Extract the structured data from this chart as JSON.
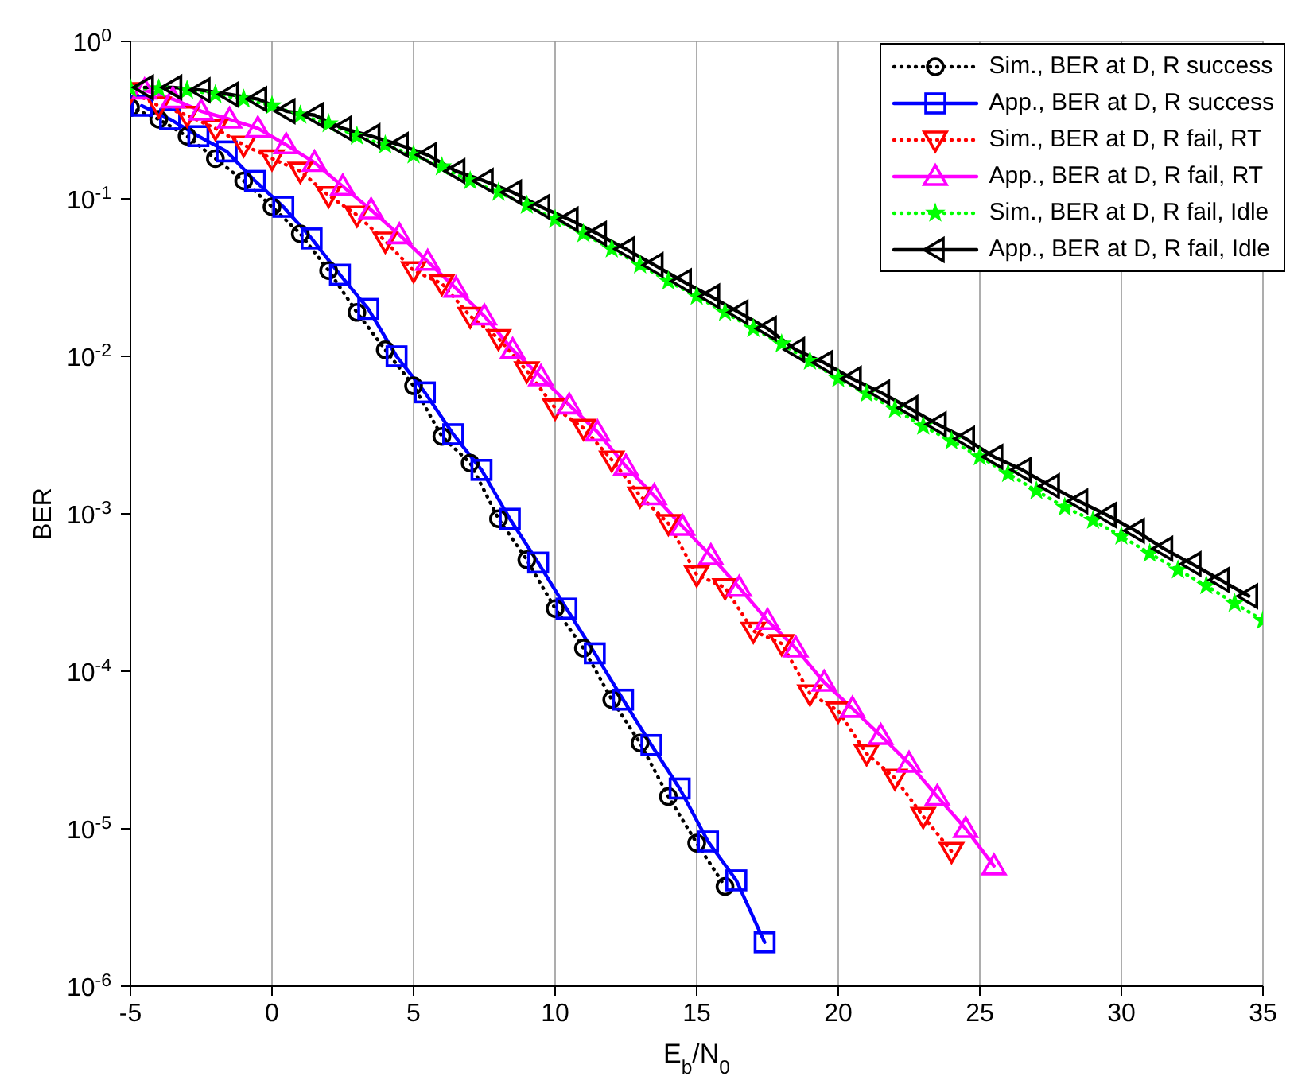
{
  "chart_data": {
    "type": "line",
    "xlabel": "E$_{b}$/N$_{0}$",
    "ylabel": "BER",
    "log": "y",
    "grid": true,
    "legend": "top right",
    "xlim": [
      -5,
      35
    ],
    "xticks": [
      -5,
      0,
      5,
      10,
      15,
      20,
      25,
      30,
      35
    ],
    "ylim": [
      1e-06,
      1
    ],
    "yticks": [
      {
        "value": 1e-06,
        "label": "10$^{-6}$"
      },
      {
        "value": 1e-05,
        "label": "10$^{-5}$"
      },
      {
        "value": 0.0001,
        "label": "10$^{-4}$"
      },
      {
        "value": 0.001,
        "label": "10$^{-3}$"
      },
      {
        "value": 0.01,
        "label": "10$^{-2}$"
      },
      {
        "value": 0.1,
        "label": "10$^{-1}$"
      },
      {
        "value": 1,
        "label": "10$^{0}$"
      }
    ],
    "series": [
      {
        "name": "Sim., BER at D, R success",
        "color": "#000000",
        "marker": "circle",
        "line_style": "dotted",
        "x": [
          -5,
          -4,
          -3,
          -2,
          -1,
          0,
          1,
          2,
          3,
          4,
          5,
          6,
          7,
          8,
          9,
          10,
          11,
          12,
          13,
          14,
          15,
          16
        ],
        "values": [
          0.38,
          0.32,
          0.25,
          0.18,
          0.13,
          0.089,
          0.06,
          0.035,
          0.019,
          0.011,
          0.0065,
          0.0031,
          0.0021,
          0.00093,
          0.00051,
          0.00025,
          0.00014,
          6.6e-05,
          3.5e-05,
          1.6e-05,
          8.1e-06,
          4.3e-06
        ]
      },
      {
        "name": "App., BER at D, R success",
        "color": "#0000ff",
        "marker": "square",
        "line_style": "solid",
        "x": [
          -4.6,
          -3.6,
          -2.6,
          -1.6,
          -0.6,
          0.4,
          1.4,
          2.4,
          3.4,
          4.4,
          5.4,
          6.4,
          7.4,
          8.4,
          9.4,
          10.4,
          11.4,
          12.4,
          13.4,
          14.4,
          15.4,
          16.4,
          17.4
        ],
        "values": [
          0.39,
          0.32,
          0.25,
          0.2,
          0.13,
          0.089,
          0.056,
          0.033,
          0.02,
          0.01,
          0.0059,
          0.0032,
          0.0019,
          0.00093,
          0.00049,
          0.00025,
          0.00013,
          6.6e-05,
          3.4e-05,
          1.8e-05,
          8.3e-06,
          4.7e-06,
          1.9e-06
        ]
      },
      {
        "name": "Sim., BER at D, R fail, RT",
        "color": "#ff0000",
        "marker": "triangle-down",
        "line_style": "dotted",
        "x": [
          -5,
          -4,
          -3,
          -2,
          -1,
          0,
          1,
          2,
          3,
          4,
          5,
          6,
          7,
          8,
          9,
          10,
          11,
          12,
          13,
          14,
          15,
          16,
          17,
          18,
          19,
          20,
          21,
          22,
          23,
          24
        ],
        "values": [
          0.48,
          0.39,
          0.34,
          0.28,
          0.22,
          0.18,
          0.15,
          0.105,
          0.079,
          0.054,
          0.035,
          0.029,
          0.018,
          0.013,
          0.0081,
          0.0047,
          0.0035,
          0.0022,
          0.0013,
          0.00087,
          0.00041,
          0.00034,
          0.00018,
          0.00015,
          7.2e-05,
          5.6e-05,
          3e-05,
          2.1e-05,
          1.2e-05,
          7.2e-06
        ]
      },
      {
        "name": "App., BER at D, R fail, RT",
        "color": "#ff00ff",
        "marker": "triangle",
        "line_style": "solid",
        "x": [
          -4.5,
          -3.5,
          -2.5,
          -1.5,
          -0.5,
          0.5,
          1.5,
          2.5,
          3.5,
          4.5,
          5.5,
          6.5,
          7.5,
          8.5,
          9.5,
          10.5,
          11.5,
          12.5,
          13.5,
          14.5,
          15.5,
          16.5,
          17.5,
          18.5,
          19.5,
          20.5,
          21.5,
          22.5,
          23.5,
          24.5,
          25.5
        ],
        "values": [
          0.49,
          0.43,
          0.36,
          0.32,
          0.28,
          0.22,
          0.17,
          0.12,
          0.085,
          0.059,
          0.04,
          0.027,
          0.018,
          0.011,
          0.0074,
          0.0049,
          0.0033,
          0.002,
          0.0013,
          0.00083,
          0.00054,
          0.00034,
          0.00021,
          0.00014,
          8.5e-05,
          5.8e-05,
          3.9e-05,
          2.6e-05,
          1.6e-05,
          1e-05,
          5.8e-06
        ]
      },
      {
        "name": "Sim., BER at D, R fail, Idle",
        "color": "#00ff00",
        "marker": "star",
        "line_style": "dotted",
        "x": [
          -5,
          -4,
          -3,
          -2,
          -1,
          0,
          1,
          2,
          3,
          4,
          5,
          6,
          7,
          8,
          9,
          10,
          11,
          12,
          13,
          14,
          15,
          16,
          17,
          18,
          19,
          20,
          21,
          22,
          23,
          24,
          25,
          26,
          27,
          28,
          29,
          30,
          31,
          32,
          33,
          34,
          35
        ],
        "values": [
          0.5,
          0.5,
          0.49,
          0.46,
          0.43,
          0.39,
          0.34,
          0.3,
          0.25,
          0.22,
          0.19,
          0.16,
          0.13,
          0.11,
          0.091,
          0.074,
          0.06,
          0.048,
          0.038,
          0.03,
          0.024,
          0.019,
          0.015,
          0.012,
          0.0093,
          0.0072,
          0.0058,
          0.0046,
          0.0036,
          0.0029,
          0.0023,
          0.0018,
          0.0014,
          0.0011,
          0.00091,
          0.00072,
          0.00056,
          0.00044,
          0.00035,
          0.00027,
          0.00021
        ]
      },
      {
        "name": "App., BER at D, R fail, Idle",
        "color": "#000000",
        "marker": "triangle-left",
        "line_style": "solid",
        "x": [
          -4.5,
          -3.5,
          -2.5,
          -1.5,
          -0.5,
          0.5,
          1.5,
          2.5,
          3.5,
          4.5,
          5.5,
          6.5,
          7.5,
          8.5,
          9.5,
          10.5,
          11.5,
          12.5,
          13.5,
          14.5,
          15.5,
          16.5,
          17.5,
          18.5,
          19.5,
          20.5,
          21.5,
          22.5,
          23.5,
          24.5,
          25.5,
          26.5,
          27.5,
          28.5,
          29.5,
          30.5,
          31.5,
          32.5,
          33.5,
          34.5
        ],
        "values": [
          0.51,
          0.51,
          0.49,
          0.46,
          0.43,
          0.36,
          0.34,
          0.28,
          0.25,
          0.22,
          0.19,
          0.15,
          0.13,
          0.11,
          0.089,
          0.074,
          0.06,
          0.048,
          0.038,
          0.03,
          0.024,
          0.019,
          0.015,
          0.011,
          0.0091,
          0.0072,
          0.0059,
          0.0047,
          0.0037,
          0.003,
          0.0023,
          0.0019,
          0.0015,
          0.0012,
          0.00098,
          0.00078,
          0.0006,
          0.00048,
          0.00038,
          0.0003
        ]
      }
    ]
  }
}
